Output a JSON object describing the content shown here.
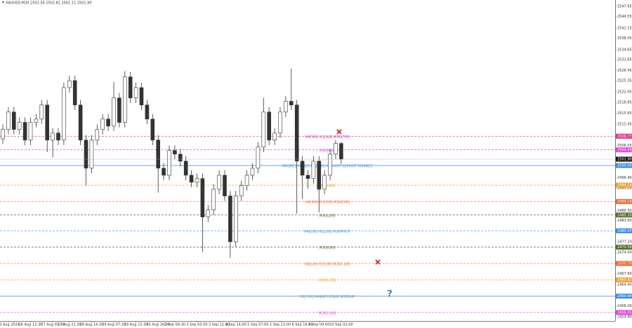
{
  "chart_data": {
    "type": "candlestick",
    "title": "XAUUSD,M30  2502.54 2502.82 2501.11 2501.90",
    "categories": [
      null,
      "23 Aug 2024",
      null,
      null,
      null,
      "26 Aug 12:30",
      null,
      null,
      null,
      "27 Aug 05:30",
      null,
      null,
      "27 Aug 21:30",
      null,
      null,
      null,
      "28 Aug 14:30",
      null,
      null,
      null,
      "29 Aug 07:30",
      null,
      null,
      null,
      "29 Aug 23:30",
      null,
      null,
      null,
      "30 Aug 16:30",
      null,
      null,
      "2 Sep 09:30",
      null,
      null,
      null,
      "3 Sep 05:00",
      null,
      null,
      null,
      "3 Sep 21:00",
      null,
      null,
      "4 Sep 14:00",
      null,
      null,
      null,
      "5 Sep 07:00",
      null,
      null,
      null,
      "5 Sep 23:00",
      null,
      null,
      null,
      "6 Sep 16:00",
      null,
      null,
      "9 Sep 09:00",
      null,
      null,
      null,
      "10 Sep 02:00"
    ],
    "open": [
      2508.0,
      2510.8,
      2516.0,
      2510.8,
      2512.9,
      2507.6,
      2512.9,
      2513.9,
      2518.1,
      2507.6,
      2509.7,
      2507.6,
      2523.3,
      2525.4,
      2518.1,
      2507.6,
      2499.2,
      2507.6,
      2510.8,
      2513.9,
      2511.8,
      2520.2,
      2512.9,
      2526.5,
      2520.2,
      2523.3,
      2518.1,
      2513.9,
      2507.6,
      2499.2,
      2497.1,
      2504.5,
      2503.4,
      2501.3,
      2497.1,
      2495.0,
      2496.1,
      2484.6,
      2486.7,
      2492.9,
      2497.1,
      2490.9,
      2477.2,
      2490.9,
      2494.0,
      2497.1,
      2499.2,
      2505.5,
      2516.0,
      2507.6,
      2509.7,
      2516.0,
      2519.2,
      2518.1,
      2501.3,
      2497.1,
      2496.1,
      2501.3,
      2492.9,
      2497.1,
      2503.4,
      2506.6
    ],
    "high": [
      2512.3,
      2517.5,
      2517.5,
      2514.4,
      2514.4,
      2514.4,
      2515.4,
      2519.6,
      2519.6,
      2511.2,
      2511.2,
      2524.8,
      2526.9,
      2526.9,
      2519.6,
      2509.1,
      2509.1,
      2512.3,
      2515.4,
      2515.4,
      2525.0,
      2521.7,
      2528.2,
      2528.0,
      2524.8,
      2524.8,
      2519.6,
      2515.4,
      2509.1,
      2500.7,
      2506.0,
      2506.0,
      2504.9,
      2502.8,
      2498.6,
      2497.6,
      2497.6,
      2488.2,
      2494.4,
      2498.6,
      2498.6,
      2492.4,
      2492.4,
      2495.5,
      2498.6,
      2500.7,
      2507.0,
      2520.2,
      2517.5,
      2511.2,
      2517.5,
      2520.7,
      2529.0,
      2519.6,
      2502.8,
      2498.6,
      2502.8,
      2502.8,
      2498.6,
      2504.9,
      2507.6,
      2507.1
    ],
    "low": [
      2506.5,
      2509.3,
      2509.3,
      2509.3,
      2506.1,
      2506.1,
      2511.4,
      2512.4,
      2504.0,
      2502.4,
      2506.1,
      2506.1,
      2521.8,
      2516.6,
      2506.1,
      2494.0,
      2497.7,
      2506.1,
      2509.3,
      2510.3,
      2510.3,
      2511.4,
      2511.4,
      2518.7,
      2518.7,
      2516.6,
      2512.4,
      2506.1,
      2491.9,
      2495.6,
      2495.6,
      2501.9,
      2499.8,
      2495.6,
      2493.5,
      2493.5,
      2474.1,
      2483.1,
      2485.2,
      2491.4,
      2489.4,
      2472.4,
      2475.7,
      2489.4,
      2492.5,
      2495.6,
      2497.7,
      2504.0,
      2506.1,
      2506.1,
      2508.2,
      2514.5,
      2516.6,
      2485.6,
      2490.0,
      2493.0,
      2494.6,
      2486.0,
      2491.4,
      2495.6,
      2501.9,
      2500.4
    ],
    "close": [
      2510.8,
      2516.0,
      2510.8,
      2512.9,
      2507.6,
      2512.9,
      2513.9,
      2518.1,
      2507.6,
      2509.7,
      2507.6,
      2523.3,
      2525.4,
      2518.1,
      2507.6,
      2499.2,
      2507.6,
      2510.8,
      2513.9,
      2511.8,
      2520.2,
      2512.9,
      2526.5,
      2520.2,
      2523.3,
      2518.1,
      2513.9,
      2507.6,
      2499.2,
      2497.1,
      2504.5,
      2503.4,
      2501.3,
      2497.1,
      2495.0,
      2496.1,
      2484.6,
      2486.7,
      2492.9,
      2497.1,
      2490.9,
      2477.2,
      2490.9,
      2494.0,
      2497.1,
      2499.2,
      2505.5,
      2516.0,
      2507.6,
      2509.7,
      2516.0,
      2519.2,
      2518.1,
      2501.3,
      2497.1,
      2496.1,
      2501.3,
      2492.9,
      2497.1,
      2503.4,
      2506.6,
      2501.9
    ],
    "ylim": [
      2453.5,
      2549.5
    ],
    "yticks": [
      2547.65,
      2544.55,
      2541.15,
      2538.05,
      2534.65,
      2531.65,
      2528.45,
      2525.35,
      2522.05,
      2518.85,
      2515.65,
      2512.45,
      {
        "value": 2506.05,
        "label": "2506.05"
      },
      {
        "value": 2496.4,
        "label": "2496.40"
      },
      {
        "value": 2493.2,
        "label": "2493.20"
      },
      {
        "value": 2486.5,
        "label": "2486.50"
      },
      {
        "value": 2483.6,
        "label": "2483.60"
      },
      {
        "value": 2477.2,
        "label": "2477.20"
      },
      {
        "value": 2474.0,
        "label": "2474.00"
      },
      {
        "value": 2467.6,
        "label": "2467.60"
      },
      {
        "value": 2464.4,
        "label": "2464.40"
      },
      {
        "value": 2458.0,
        "label": "2458.00"
      },
      {
        "value": 2454.8,
        "label": "2454.80"
      }
    ],
    "current_price": {
      "value": 2501.9,
      "label": "2501.90"
    },
    "levels": [
      {
        "price": 2508.77,
        "text": "H4[5/8] H1[5/8] M30[7/8]",
        "color": "#e0338a",
        "dashed": true
      },
      {
        "price": 2504.69,
        "text": "M30[6/8]",
        "color": "#e040e0",
        "dashed": true
      },
      {
        "price": {
          "value": 2500.0,
          "label": "2500.00"
        },
        "text": "MN1RES H1RES D1[7/8] H4PIVOT H1PIVOT M30RES",
        "color": "#3a8ee6",
        "dashed": false
      },
      {
        "price": 2494.14,
        "text": "M30[4/8]",
        "color": "#f0a030",
        "dashed": true
      },
      {
        "price": 2489.23,
        "text": "H4[3/8] H1[3/8] M30[3/8]",
        "color": "#f06a30",
        "dashed": true
      },
      {
        "price": {
          "value": 2485.2,
          "label": "2485.20"
        },
        "text": "M30[2/8]",
        "color": "#556b2f",
        "dashed": true
      },
      {
        "price": 2480.47,
        "text": "H4[2/8] H1[2/8] M30PIVOT",
        "color": "#3a8ee6",
        "dashed": true
      },
      {
        "price": 2475.58,
        "text": "M30[0/8]",
        "color": "#556b2f",
        "dashed": true
      },
      {
        "price": {
          "value": 2470.7,
          "label": "2470.70"
        },
        "text": "H4[1/8] H1[1/8] M30[-1/8]",
        "color": "#f06a30",
        "dashed": true
      },
      {
        "price": 2465.82,
        "text": "M30[-2/8]",
        "color": "#f0a030",
        "dashed": true
      },
      {
        "price": 2460.94,
        "text": "D1[7/8] H4SUP H1SUP M30SUP",
        "color": "#3a8ee6",
        "dashed": false
      },
      {
        "price": 2456.05,
        "text": "M30[-1/8]",
        "color": "#e040e0",
        "dashed": true
      }
    ]
  }
}
